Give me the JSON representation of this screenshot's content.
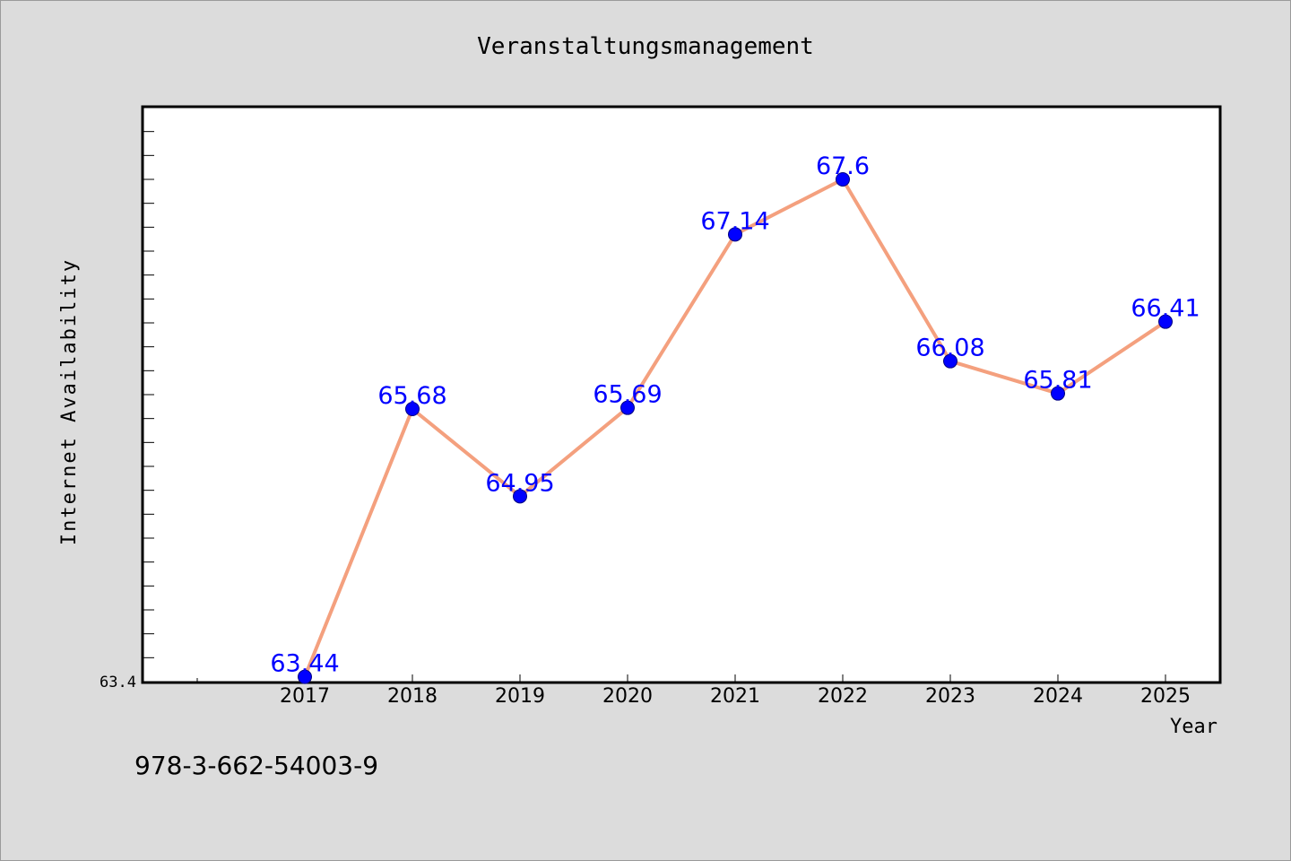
{
  "footer_text": "978-3-662-54003-9",
  "chart_data": {
    "type": "line",
    "title": "Veranstaltungsmanagement",
    "xlabel": "Year",
    "ylabel": "Internet Availability",
    "categories": [
      "2017",
      "2018",
      "2019",
      "2020",
      "2021",
      "2022",
      "2023",
      "2024",
      "2025"
    ],
    "values": [
      63.44,
      65.68,
      64.95,
      65.69,
      67.14,
      67.6,
      66.08,
      65.81,
      66.41
    ],
    "data_labels": [
      "63.44",
      "65.68",
      "64.95",
      "65.69",
      "67.14",
      "67.6",
      "66.08",
      "65.81",
      "66.41"
    ],
    "ytick_labels": [
      "63.4"
    ],
    "ylim": [
      63.4,
      68.2
    ],
    "grid": false,
    "legend": "none",
    "colors": {
      "line": "#f4a07e",
      "marker": "#0000ff",
      "label": "#0000ff",
      "plot_background": "#ffffff",
      "figure_background": "#dcdcdc"
    }
  }
}
